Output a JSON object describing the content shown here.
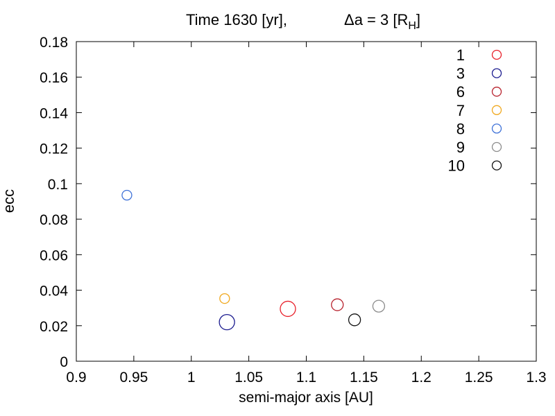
{
  "chart_data": {
    "type": "scatter",
    "title": {
      "prefix": "Time 1630 [yr],",
      "delta": "Δa = 3 [R",
      "delta_sub": "H",
      "delta_close": "]"
    },
    "xlabel": "semi-major axis [AU]",
    "ylabel": "ecc",
    "xlim": [
      0.9,
      1.3
    ],
    "ylim": [
      0,
      0.18
    ],
    "xticks": [
      0.9,
      0.95,
      1.0,
      1.05,
      1.1,
      1.15,
      1.2,
      1.25,
      1.3
    ],
    "xtick_labels": [
      "0.9",
      "0.95",
      "1",
      "1.05",
      "1.1",
      "1.15",
      "1.2",
      "1.25",
      "1.3"
    ],
    "yticks": [
      0,
      0.02,
      0.04,
      0.06,
      0.08,
      0.1,
      0.12,
      0.14,
      0.16,
      0.18
    ],
    "ytick_labels": [
      "0",
      "0.02",
      "0.04",
      "0.06",
      "0.08",
      "0.1",
      "0.12",
      "0.14",
      "0.16",
      "0.18"
    ],
    "legend_position": "top-right",
    "grid": false,
    "series": [
      {
        "name": "1",
        "color": "#e8202a",
        "x": 1.084,
        "y": 0.0295,
        "size": "large"
      },
      {
        "name": "3",
        "color": "#1c1c8f",
        "x": 1.031,
        "y": 0.022,
        "size": "large"
      },
      {
        "name": "6",
        "color": "#b8232e",
        "x": 1.127,
        "y": 0.0318,
        "size": "medium"
      },
      {
        "name": "7",
        "color": "#f0a81e",
        "x": 1.029,
        "y": 0.0353,
        "size": "small"
      },
      {
        "name": "8",
        "color": "#3f72d8",
        "x": 0.944,
        "y": 0.0935,
        "size": "small"
      },
      {
        "name": "9",
        "color": "#8c8c8c",
        "x": 1.163,
        "y": 0.031,
        "size": "medium"
      },
      {
        "name": "10",
        "color": "#111111",
        "x": 1.142,
        "y": 0.0233,
        "size": "medium"
      }
    ]
  }
}
